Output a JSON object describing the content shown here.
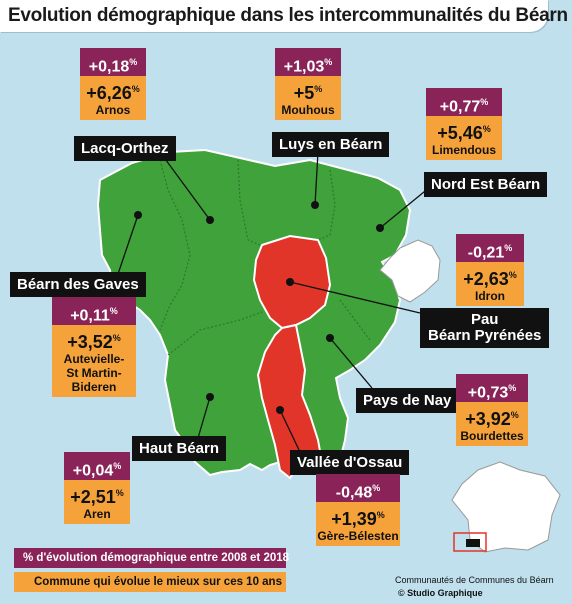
{
  "title": "Evolution démographique dans les intercommunalités du Béarn",
  "colors": {
    "gain": "#3fa23a",
    "loss": "#e2352a",
    "purple": "#8a2458",
    "orange": "#f5a23a",
    "sea": "#bfe0ec",
    "other": "#ffffff"
  },
  "regions": [
    {
      "id": "lacq",
      "label": "Lacq-Orthez",
      "interco_change": "+0,18",
      "best_change": "+6,26",
      "best_commune": "Arnos",
      "trend": "gain"
    },
    {
      "id": "luys",
      "label": "Luys en Béarn",
      "interco_change": "+1,03",
      "best_change": "+5",
      "best_commune": "Mouhous",
      "trend": "gain"
    },
    {
      "id": "neb",
      "label": "Nord Est Béarn",
      "interco_change": "+0,77",
      "best_change": "+5,46",
      "best_commune": "Limendous",
      "trend": "gain"
    },
    {
      "id": "gaves",
      "label": "Béarn des Gaves",
      "interco_change": "+0,11",
      "best_change": "+3,52",
      "best_commune": "Autevielle-St Martin-Bideren",
      "best_commune_lines": [
        "Autevielle-",
        "St Martin-Bideren"
      ],
      "trend": "gain"
    },
    {
      "id": "pau",
      "label_lines": [
        "Pau",
        "Béarn Pyrénées"
      ],
      "interco_change": "-0,21",
      "best_change": "+2,63",
      "best_commune": "Idron",
      "trend": "loss"
    },
    {
      "id": "nay",
      "label": "Pays de Nay",
      "interco_change": "+0,73",
      "best_change": "+3,92",
      "best_commune": "Bourdettes",
      "trend": "gain"
    },
    {
      "id": "haut",
      "label": "Haut Béarn",
      "interco_change": "+0,04",
      "best_change": "+2,51",
      "best_commune": "Aren",
      "trend": "gain"
    },
    {
      "id": "ossau",
      "label": "Vallée d'Ossau",
      "interco_change": "-0,48",
      "best_change": "+1,39",
      "best_commune": "Gère-Bélesten",
      "trend": "loss"
    }
  ],
  "pct": "%",
  "legend": {
    "purple_text": "% d'évolution démographique entre 2008 et 2018",
    "orange_text": "Commune qui évolue le mieux sur ces 10 ans"
  },
  "credits": {
    "line1": "Communautés de Communes du Béarn",
    "line2": "© Studio Graphique"
  }
}
